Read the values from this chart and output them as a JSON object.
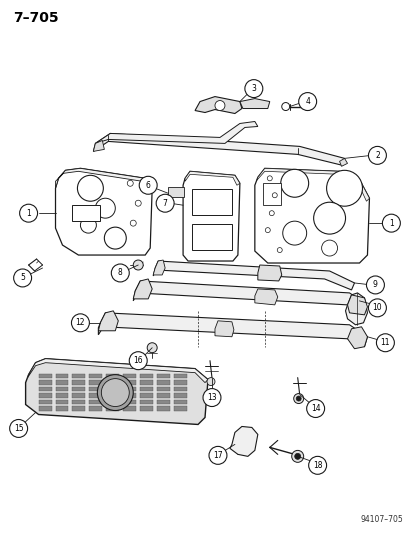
{
  "title": "7–705",
  "watermark": "94107–705",
  "bg_color": "#ffffff",
  "fig_width": 4.14,
  "fig_height": 5.33,
  "dpi": 100,
  "line_color": "#1a1a1a",
  "fill_light": "#f0f0f0",
  "fill_mid": "#e0e0e0",
  "fill_dark": "#c8c8c8"
}
